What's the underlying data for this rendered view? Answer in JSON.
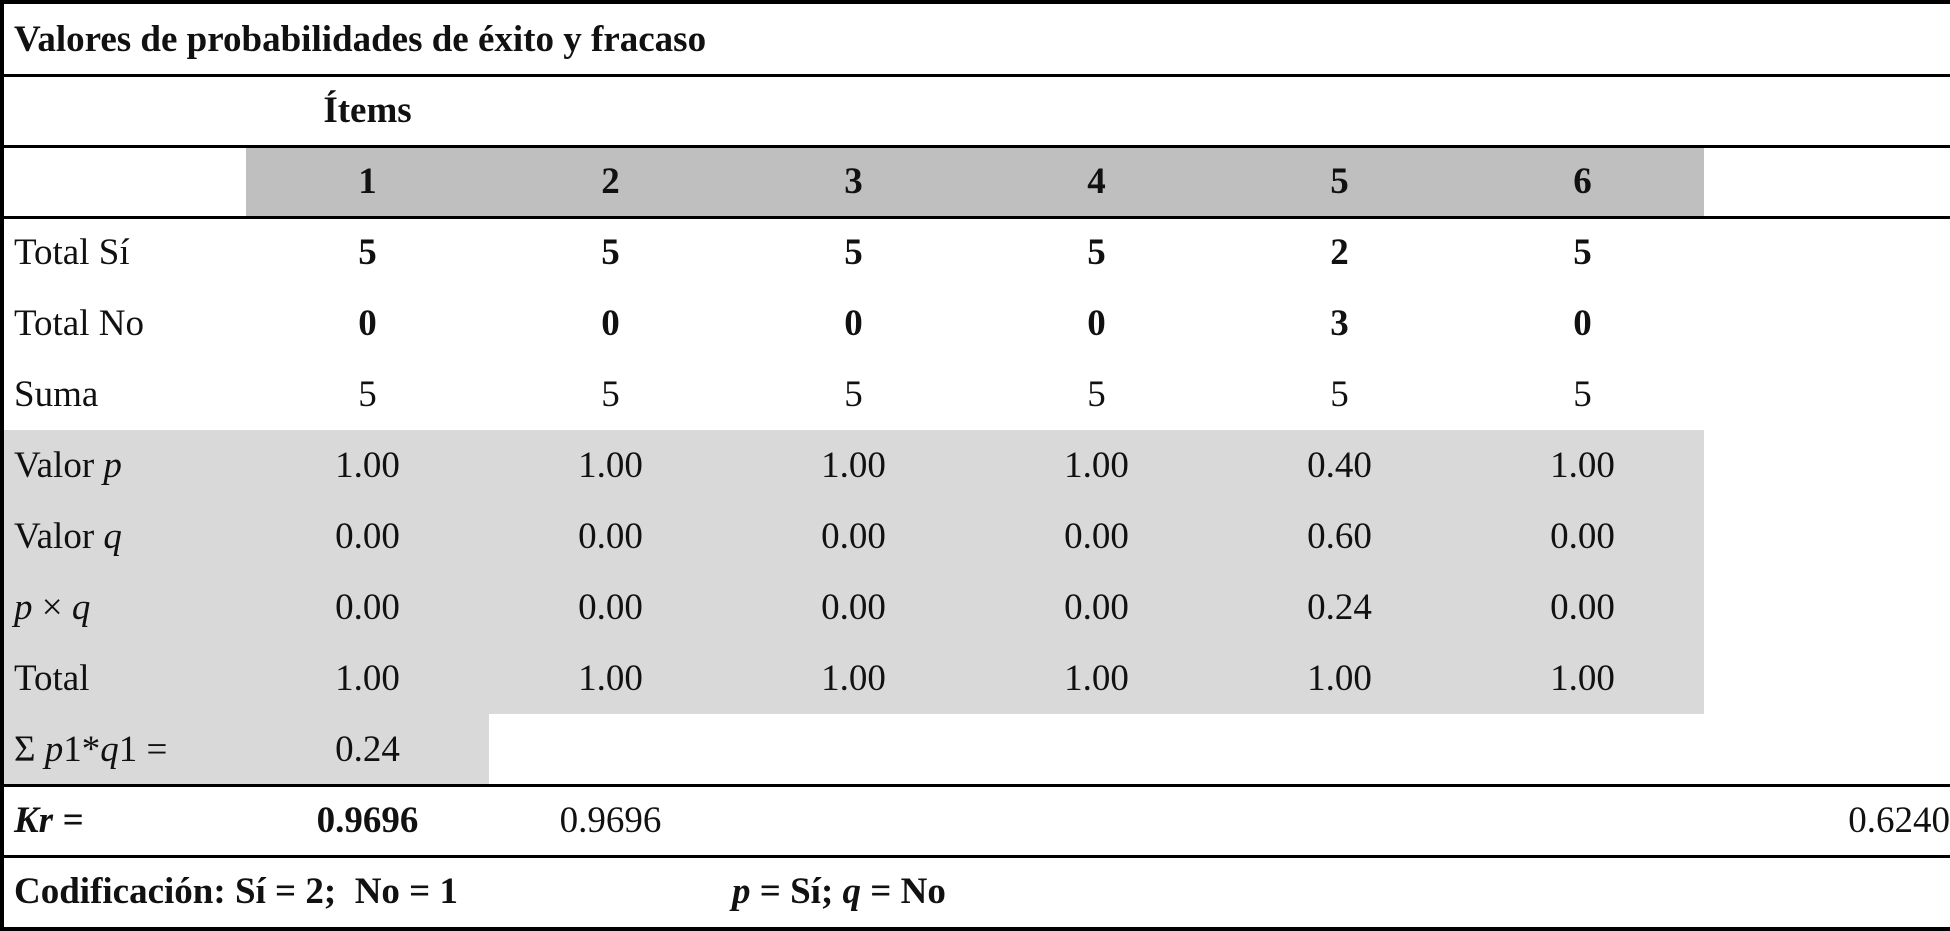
{
  "title": "Valores de probabilidades de éxito y fracaso",
  "items_label": "Ítems",
  "columns": [
    "1",
    "2",
    "3",
    "4",
    "5",
    "6"
  ],
  "rows": [
    {
      "label": [
        "Total Sí"
      ],
      "values": [
        "5",
        "5",
        "5",
        "5",
        "2",
        "5"
      ]
    },
    {
      "label": [
        "Total No"
      ],
      "values": [
        "0",
        "0",
        "0",
        "0",
        "3",
        "0"
      ]
    },
    {
      "label": [
        "Suma"
      ],
      "values": [
        "5",
        "5",
        "5",
        "5",
        "5",
        "5"
      ]
    },
    {
      "label": [
        "Valor ",
        "p"
      ],
      "values": [
        "1.00",
        "1.00",
        "1.00",
        "1.00",
        "0.40",
        "1.00"
      ]
    },
    {
      "label": [
        "Valor ",
        "q"
      ],
      "values": [
        "0.00",
        "0.00",
        "0.00",
        "0.00",
        "0.60",
        "0.00"
      ]
    },
    {
      "label": [
        "p",
        " × ",
        "q"
      ],
      "values": [
        "0.00",
        "0.00",
        "0.00",
        "0.00",
        "0.24",
        "0.00"
      ]
    },
    {
      "label": [
        "Total"
      ],
      "values": [
        "1.00",
        "1.00",
        "1.00",
        "1.00",
        "1.00",
        "1.00"
      ]
    }
  ],
  "sum_row": {
    "label": [
      "Σ ",
      "p",
      "1*",
      "q",
      "1 ="
    ],
    "value": "0.24"
  },
  "kr_row": {
    "label": "Kr =",
    "values": [
      "0.9696",
      "0.9696",
      "0.6240"
    ]
  },
  "footer": {
    "coding": "Codificación: Sí = 2;  No = 1",
    "legend": [
      "p",
      " = Sí; ",
      "q",
      " = No"
    ]
  }
}
